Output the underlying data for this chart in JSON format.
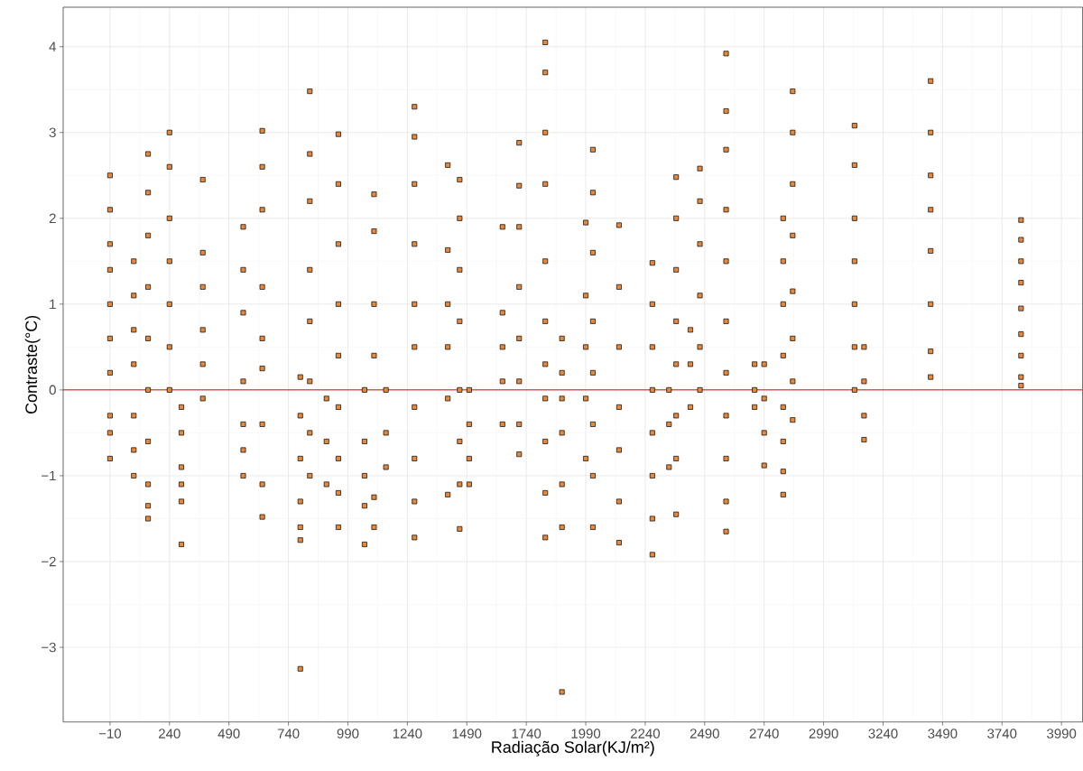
{
  "chart_data": {
    "type": "scatter",
    "xlabel": "Radiação Solar(KJ/m²)",
    "ylabel": "Contraste(°C)",
    "xlim": [
      -207,
      4079
    ],
    "ylim": [
      -3.87,
      4.46
    ],
    "xticks": [
      {
        "value": -10,
        "label": "−10"
      },
      240,
      490,
      740,
      990,
      1240,
      1490,
      1740,
      1990,
      2240,
      2490,
      2740,
      2990,
      3240,
      3490,
      3740,
      3990
    ],
    "yticks": [
      {
        "value": -3,
        "label": "−3"
      },
      {
        "value": -2,
        "label": "−2"
      },
      {
        "value": -1,
        "label": "−1"
      },
      0,
      1,
      2,
      3,
      4
    ],
    "grid": true,
    "marker": "square",
    "ref_lines": [
      {
        "axis": "y",
        "value": 0,
        "color": "#e0231f"
      }
    ],
    "series": [
      {
        "color": "#e8883a",
        "x": [
          -10,
          -10,
          -10,
          -10,
          -10,
          -10,
          -10,
          -10,
          -10,
          -10,
          90,
          90,
          90,
          90,
          90,
          90,
          90,
          150,
          150,
          150,
          150,
          150,
          150,
          150,
          150,
          150,
          150,
          240,
          240,
          240,
          240,
          240,
          240,
          240,
          290,
          290,
          290,
          290,
          290,
          290,
          380,
          380,
          380,
          380,
          380,
          380,
          550,
          550,
          550,
          550,
          550,
          550,
          550,
          630,
          630,
          630,
          630,
          630,
          630,
          630,
          630,
          630,
          790,
          790,
          790,
          790,
          790,
          790,
          790,
          830,
          830,
          830,
          830,
          830,
          830,
          830,
          830,
          900,
          900,
          900,
          950,
          950,
          950,
          950,
          950,
          950,
          950,
          950,
          950,
          1060,
          1060,
          1060,
          1060,
          1060,
          1100,
          1100,
          1100,
          1100,
          1100,
          1100,
          1150,
          1150,
          1150,
          1270,
          1270,
          1270,
          1270,
          1270,
          1270,
          1270,
          1270,
          1270,
          1270,
          1410,
          1410,
          1410,
          1410,
          1410,
          1410,
          1460,
          1460,
          1460,
          1460,
          1460,
          1460,
          1460,
          1460,
          1500,
          1500,
          1500,
          1500,
          1640,
          1640,
          1640,
          1640,
          1640,
          1710,
          1710,
          1710,
          1710,
          1710,
          1710,
          1710,
          1710,
          1820,
          1820,
          1820,
          1820,
          1820,
          1820,
          1820,
          1820,
          1820,
          1820,
          1820,
          1890,
          1890,
          1890,
          1890,
          1890,
          1890,
          1890,
          1990,
          1990,
          1990,
          1990,
          1990,
          2020,
          2020,
          2020,
          2020,
          2020,
          2020,
          2020,
          2020,
          2130,
          2130,
          2130,
          2130,
          2130,
          2130,
          2130,
          2270,
          2270,
          2270,
          2270,
          2270,
          2270,
          2270,
          2270,
          2340,
          2340,
          2340,
          2370,
          2370,
          2370,
          2370,
          2370,
          2370,
          2370,
          2370,
          2430,
          2430,
          2430,
          2470,
          2470,
          2470,
          2470,
          2470,
          2470,
          2580,
          2580,
          2580,
          2580,
          2580,
          2580,
          2580,
          2580,
          2580,
          2580,
          2580,
          2700,
          2700,
          2700,
          2740,
          2740,
          2740,
          2740,
          2820,
          2820,
          2820,
          2820,
          2820,
          2820,
          2820,
          2820,
          2860,
          2860,
          2860,
          2860,
          2860,
          2860,
          2860,
          2860,
          3120,
          3120,
          3120,
          3120,
          3120,
          3120,
          3120,
          3160,
          3160,
          3160,
          3160,
          3440,
          3440,
          3440,
          3440,
          3440,
          3440,
          3440,
          3440,
          3820,
          3820,
          3820,
          3820,
          3820,
          3820,
          3820,
          3820,
          3820
        ],
        "values": [
          2.5,
          2.1,
          1.7,
          1.4,
          1.0,
          0.6,
          0.2,
          -0.3,
          -0.5,
          -0.8,
          1.5,
          1.1,
          0.7,
          0.3,
          -0.3,
          -0.7,
          -1.0,
          2.75,
          2.3,
          1.8,
          1.2,
          0.6,
          0.0,
          -0.6,
          -1.1,
          -1.35,
          -1.5,
          3.0,
          2.6,
          2.0,
          1.5,
          1.0,
          0.5,
          0.0,
          -0.2,
          -0.5,
          -0.9,
          -1.1,
          -1.3,
          -1.8,
          2.45,
          1.6,
          1.2,
          0.7,
          0.3,
          -0.1,
          1.9,
          1.4,
          0.9,
          0.1,
          -0.4,
          -0.7,
          -1.0,
          3.02,
          2.6,
          2.1,
          1.2,
          0.6,
          0.25,
          -0.4,
          -1.1,
          -1.48,
          0.15,
          -0.3,
          -0.8,
          -1.3,
          -1.6,
          -1.75,
          -3.25,
          3.48,
          2.75,
          2.2,
          1.4,
          0.8,
          0.1,
          -0.5,
          -1.0,
          -0.1,
          -0.6,
          -1.1,
          2.98,
          2.4,
          1.7,
          1.0,
          0.4,
          -0.2,
          -0.8,
          -1.2,
          -1.6,
          0.0,
          -0.6,
          -1.0,
          -1.35,
          -1.8,
          2.28,
          1.85,
          1.0,
          0.4,
          -1.25,
          -1.6,
          0.0,
          -0.5,
          -0.9,
          3.3,
          2.95,
          2.4,
          1.7,
          1.0,
          0.5,
          -0.2,
          -0.8,
          -1.3,
          -1.72,
          2.62,
          1.63,
          1.0,
          0.5,
          -0.1,
          -1.22,
          2.45,
          2.0,
          1.4,
          0.8,
          0.0,
          -0.6,
          -1.1,
          -1.62,
          0.0,
          -0.4,
          -0.8,
          -1.1,
          1.9,
          0.9,
          0.5,
          0.1,
          -0.4,
          2.88,
          2.38,
          1.9,
          1.2,
          0.6,
          0.1,
          -0.4,
          -0.75,
          4.05,
          3.7,
          3.0,
          2.4,
          1.5,
          0.8,
          0.3,
          -0.1,
          -0.6,
          -1.2,
          -1.72,
          0.6,
          0.2,
          -0.1,
          -0.5,
          -1.1,
          -1.6,
          -3.52,
          1.95,
          1.1,
          0.5,
          -0.1,
          -0.8,
          2.8,
          2.3,
          1.6,
          0.8,
          0.2,
          -0.4,
          -1.0,
          -1.6,
          1.92,
          1.2,
          0.5,
          -0.2,
          -0.7,
          -1.3,
          -1.78,
          1.48,
          1.0,
          0.5,
          0.0,
          -0.5,
          -1.0,
          -1.5,
          -1.92,
          0.0,
          -0.4,
          -0.9,
          2.48,
          2.0,
          1.4,
          0.8,
          0.3,
          -0.3,
          -0.8,
          -1.45,
          0.7,
          0.3,
          -0.2,
          2.58,
          2.2,
          1.7,
          1.1,
          0.5,
          0.0,
          3.92,
          3.25,
          2.8,
          2.1,
          1.5,
          0.8,
          0.2,
          -0.3,
          -0.8,
          -1.3,
          -1.65,
          0.3,
          0.0,
          -0.2,
          0.3,
          -0.1,
          -0.5,
          -0.88,
          2.0,
          1.5,
          1.0,
          0.4,
          -0.2,
          -0.6,
          -0.95,
          -1.22,
          3.48,
          3.0,
          2.4,
          1.8,
          1.15,
          0.6,
          0.1,
          -0.35,
          3.08,
          2.62,
          2.0,
          1.5,
          1.0,
          0.5,
          0.0,
          0.5,
          0.1,
          -0.3,
          -0.58,
          3.6,
          3.0,
          2.5,
          2.1,
          1.62,
          1.0,
          0.45,
          0.15,
          1.98,
          1.75,
          1.5,
          1.25,
          0.95,
          0.65,
          0.4,
          0.15,
          0.05
        ]
      }
    ]
  }
}
